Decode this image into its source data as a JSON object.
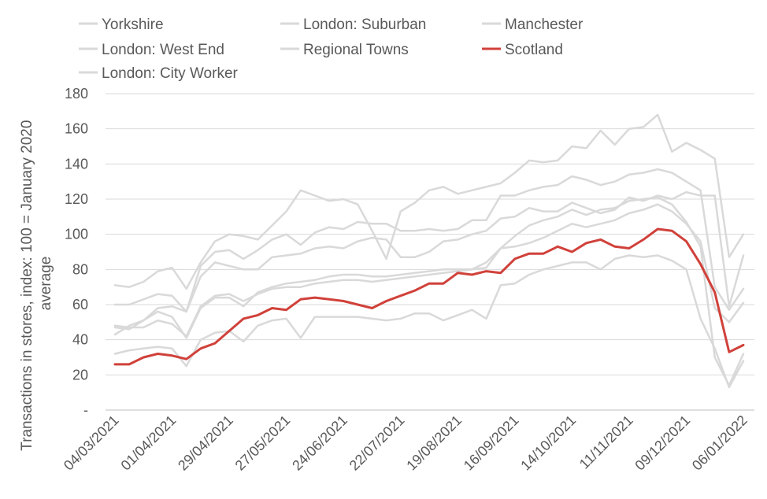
{
  "chart_data": {
    "type": "line",
    "ylabel_line1": "Transactions in stores, index: 100 = January 2020",
    "ylabel_line2": "average",
    "ylim": [
      0,
      180
    ],
    "yticks": [
      0,
      20,
      40,
      60,
      80,
      100,
      120,
      140,
      160,
      180
    ],
    "ytick_labels": [
      "-",
      "20",
      "40",
      "60",
      "80",
      "100",
      "120",
      "140",
      "160",
      "180"
    ],
    "grid": "horizontal",
    "legend_position": "top",
    "xtick_labels": [
      "04/03/2021",
      "01/04/2021",
      "29/04/2021",
      "27/05/2021",
      "24/06/2021",
      "22/07/2021",
      "19/08/2021",
      "16/09/2021",
      "14/10/2021",
      "11/11/2021",
      "09/12/2021",
      "06/01/2022"
    ],
    "xtick_every": 4,
    "colors": {
      "highlight": "#d0413a",
      "other": "#d9d9d9",
      "grid": "#d9d9d9",
      "axis": "#bfbfbf"
    },
    "series": [
      {
        "name": "Yorkshire",
        "highlight": false,
        "values": [
          71,
          70,
          73,
          79,
          81,
          69,
          84,
          96,
          100,
          99,
          97,
          105,
          113,
          125,
          122,
          119,
          120,
          117,
          102,
          86,
          113,
          118,
          125,
          127,
          123,
          125,
          127,
          129,
          135,
          142,
          141,
          142,
          150,
          149,
          159,
          151,
          160,
          161,
          168,
          147,
          152,
          148,
          143,
          87,
          100
        ]
      },
      {
        "name": "London: Suburban",
        "highlight": false,
        "values": [
          60,
          60,
          63,
          66,
          65,
          56,
          82,
          90,
          91,
          86,
          91,
          97,
          100,
          94,
          101,
          104,
          103,
          107,
          106,
          106,
          102,
          102,
          103,
          102,
          103,
          108,
          108,
          122,
          122,
          125,
          127,
          128,
          133,
          131,
          128,
          130,
          134,
          135,
          137,
          135,
          130,
          125,
          70,
          57,
          69
        ]
      },
      {
        "name": "Manchester",
        "highlight": false,
        "values": [
          48,
          47,
          47,
          51,
          49,
          42,
          59,
          65,
          66,
          62,
          66,
          69,
          70,
          70,
          72,
          73,
          74,
          74,
          73,
          74,
          75,
          76,
          77,
          78,
          79,
          80,
          84,
          92,
          93,
          95,
          98,
          102,
          106,
          104,
          106,
          108,
          112,
          114,
          117,
          113,
          106,
          96,
          58,
          50,
          61
        ]
      },
      {
        "name": "London: West End",
        "highlight": false,
        "values": [
          43,
          48,
          51,
          56,
          53,
          41,
          58,
          64,
          64,
          59,
          67,
          70,
          72,
          73,
          74,
          76,
          77,
          77,
          76,
          76,
          77,
          78,
          79,
          80,
          80,
          80,
          81,
          92,
          99,
          105,
          108,
          110,
          114,
          111,
          114,
          115,
          119,
          120,
          121,
          117,
          107,
          93,
          30,
          14,
          32
        ]
      },
      {
        "name": "Regional Towns",
        "highlight": false,
        "values": [
          47,
          46,
          51,
          58,
          59,
          56,
          76,
          84,
          82,
          80,
          80,
          87,
          88,
          89,
          92,
          93,
          92,
          96,
          98,
          97,
          87,
          87,
          90,
          96,
          97,
          100,
          102,
          109,
          110,
          115,
          113,
          113,
          118,
          115,
          112,
          114,
          121,
          119,
          122,
          120,
          124,
          122,
          122,
          59,
          88
        ]
      },
      {
        "name": "Scotland",
        "highlight": true,
        "values": [
          26,
          26,
          30,
          32,
          31,
          29,
          35,
          38,
          45,
          52,
          54,
          58,
          57,
          63,
          64,
          63,
          62,
          60,
          58,
          62,
          65,
          68,
          72,
          72,
          78,
          77,
          79,
          78,
          86,
          89,
          89,
          93,
          90,
          95,
          97,
          93,
          92,
          97,
          103,
          102,
          96,
          83,
          67,
          33,
          37
        ]
      },
      {
        "name": "London: City Worker",
        "highlight": false,
        "values": [
          32,
          34,
          35,
          36,
          35,
          25,
          40,
          44,
          45,
          39,
          48,
          51,
          52,
          41,
          53,
          53,
          53,
          53,
          52,
          51,
          52,
          55,
          55,
          51,
          54,
          57,
          52,
          71,
          72,
          77,
          80,
          82,
          84,
          84,
          80,
          86,
          88,
          87,
          88,
          85,
          80,
          52,
          35,
          13,
          28
        ]
      }
    ],
    "legend_rows": [
      [
        "Yorkshire",
        "London: Suburban",
        "Manchester"
      ],
      [
        "London: West End",
        "Regional Towns",
        "Scotland"
      ],
      [
        "London: City Worker"
      ]
    ]
  }
}
